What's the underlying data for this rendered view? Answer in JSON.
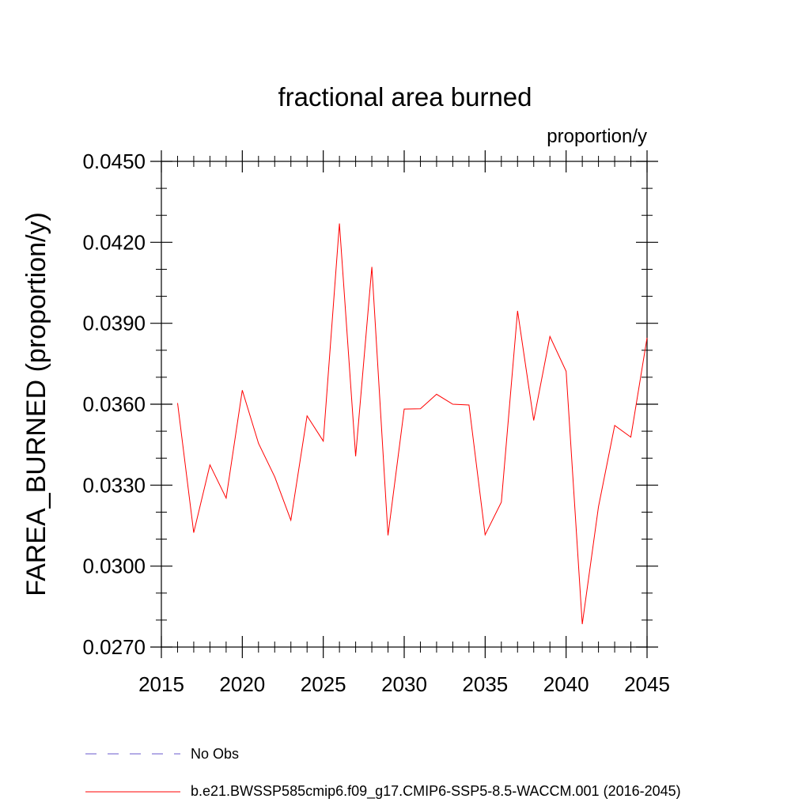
{
  "chart_data": {
    "type": "line",
    "title": "fractional area burned",
    "units_label": "proportion/y",
    "xlabel": "",
    "ylabel": "FAREA_BURNED  (proportion/y)",
    "xlim": [
      2015,
      2045
    ],
    "ylim": [
      0.027,
      0.045
    ],
    "x_ticks": [
      2015,
      2020,
      2025,
      2030,
      2035,
      2040,
      2045
    ],
    "x_tick_labels": [
      "2015",
      "2020",
      "2025",
      "2030",
      "2035",
      "2040",
      "2045"
    ],
    "y_ticks": [
      0.027,
      0.03,
      0.033,
      0.036,
      0.039,
      0.042,
      0.045
    ],
    "y_tick_labels": [
      "0.0270",
      "0.0300",
      "0.0330",
      "0.0360",
      "0.0390",
      "0.0420",
      "0.0450"
    ],
    "grid": false,
    "legend_position": "bottom",
    "series": [
      {
        "name": "b.e21.BWSSP585cmip6.f09_g17.CMIP6-SSP5-8.5-WACCM.001 (2016-2045)",
        "color": "#ff0000",
        "style": "solid",
        "x": [
          2016,
          2017,
          2018,
          2019,
          2020,
          2021,
          2022,
          2023,
          2024,
          2025,
          2026,
          2027,
          2028,
          2029,
          2030,
          2031,
          2032,
          2033,
          2034,
          2035,
          2036,
          2037,
          2038,
          2039,
          2040,
          2041,
          2042,
          2043,
          2044,
          2045
        ],
        "values": [
          0.03604,
          0.03124,
          0.03375,
          0.03252,
          0.03652,
          0.03455,
          0.03331,
          0.0317,
          0.03557,
          0.03463,
          0.0427,
          0.03407,
          0.04109,
          0.03114,
          0.03582,
          0.03583,
          0.03637,
          0.036,
          0.03597,
          0.03116,
          0.03237,
          0.03946,
          0.0354,
          0.03851,
          0.03722,
          0.02785,
          0.0322,
          0.03521,
          0.03478,
          0.03846
        ]
      }
    ],
    "legend": [
      {
        "label": "No Obs",
        "color": "#6a5acd",
        "style": "dashed"
      },
      {
        "label": "b.e21.BWSSP585cmip6.f09_g17.CMIP6-SSP5-8.5-WACCM.001 (2016-2045)",
        "color": "#ff0000",
        "style": "solid"
      }
    ]
  }
}
